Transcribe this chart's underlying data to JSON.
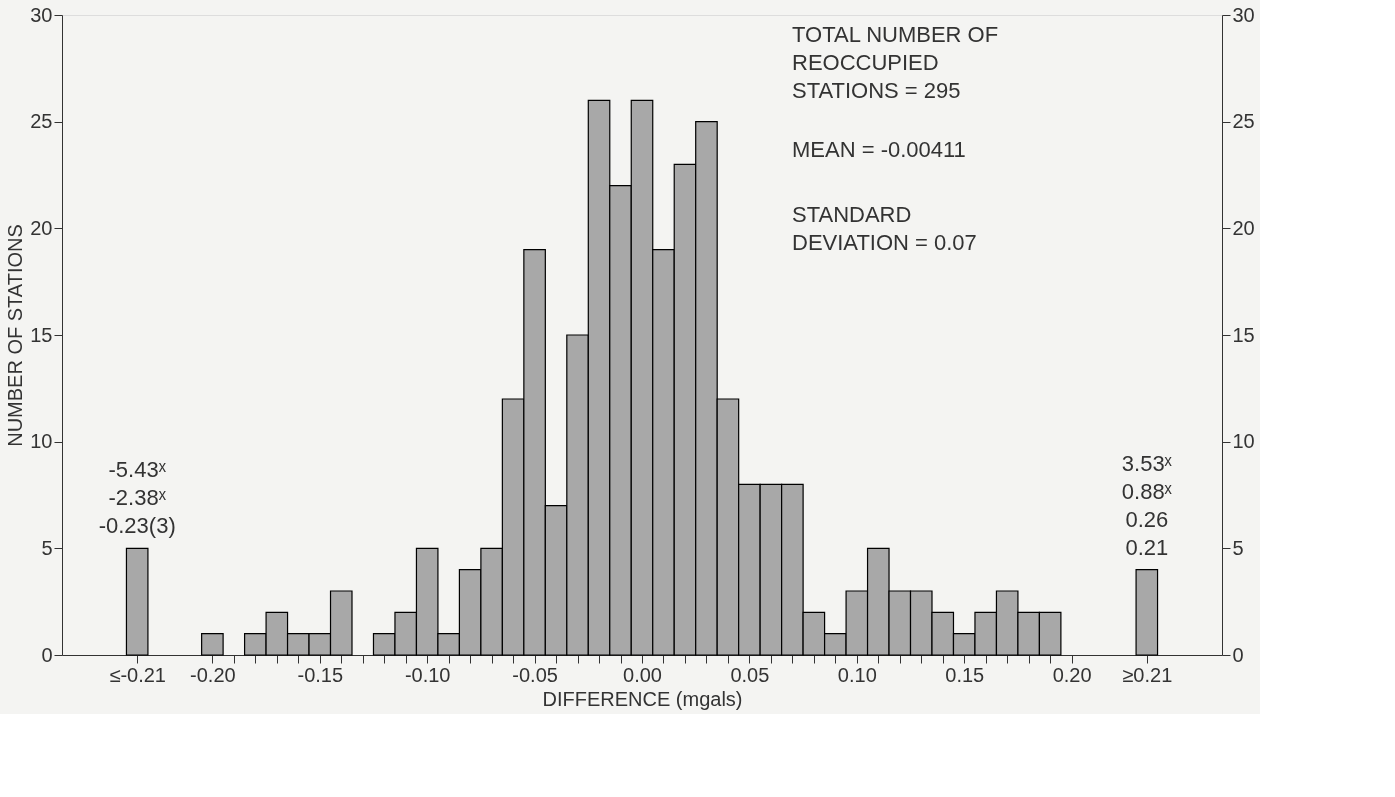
{
  "chart_data": {
    "type": "histogram",
    "xlabel": "DIFFERENCE (mgals)",
    "ylabel": "NUMBER OF STATIONS",
    "bins": [
      -0.24,
      -0.23,
      -0.205,
      -0.195,
      -0.185,
      -0.175,
      -0.165,
      -0.155,
      -0.145,
      -0.135,
      -0.125,
      -0.115,
      -0.105,
      -0.095,
      -0.085,
      -0.075,
      -0.065,
      -0.055,
      -0.045,
      -0.035,
      -0.025,
      -0.015,
      -0.005,
      0.005,
      0.015,
      0.025,
      0.035,
      0.045,
      0.055,
      0.065,
      0.075,
      0.085,
      0.095,
      0.105,
      0.115,
      0.125,
      0.135,
      0.145,
      0.155,
      0.165,
      0.175,
      0.185,
      0.195,
      0.23,
      0.24
    ],
    "values": [
      5,
      null,
      1,
      0,
      1,
      2,
      1,
      1,
      3,
      0,
      1,
      2,
      5,
      1,
      4,
      5,
      12,
      19,
      7,
      15,
      26,
      22,
      26,
      19,
      23,
      25,
      12,
      8,
      8,
      8,
      2,
      1,
      3,
      5,
      3,
      3,
      2,
      1,
      2,
      3,
      2,
      2,
      null,
      4
    ],
    "color": "#a8a8a8",
    "xlim": [
      -0.27,
      0.27
    ],
    "xticks": [
      {
        "value": -0.235,
        "label": "≤-0.21"
      },
      {
        "value": -0.2,
        "label": "-0.20"
      },
      {
        "value": -0.19,
        "label": null
      },
      {
        "value": -0.18,
        "label": null
      },
      {
        "value": -0.17,
        "label": null
      },
      {
        "value": -0.16,
        "label": null
      },
      {
        "value": -0.15,
        "label": "-0.15"
      },
      {
        "value": -0.14,
        "label": null
      },
      {
        "value": -0.13,
        "label": null
      },
      {
        "value": -0.12,
        "label": null
      },
      {
        "value": -0.11,
        "label": null
      },
      {
        "value": -0.1,
        "label": "-0.10"
      },
      {
        "value": -0.09,
        "label": null
      },
      {
        "value": -0.08,
        "label": null
      },
      {
        "value": -0.07,
        "label": null
      },
      {
        "value": -0.06,
        "label": null
      },
      {
        "value": -0.05,
        "label": "-0.05"
      },
      {
        "value": -0.04,
        "label": null
      },
      {
        "value": -0.03,
        "label": null
      },
      {
        "value": -0.02,
        "label": null
      },
      {
        "value": -0.01,
        "label": null
      },
      {
        "value": 0,
        "label": "0.00"
      },
      {
        "value": 0.01,
        "label": null
      },
      {
        "value": 0.02,
        "label": null
      },
      {
        "value": 0.03,
        "label": null
      },
      {
        "value": 0.04,
        "label": null
      },
      {
        "value": 0.05,
        "label": "0.05"
      },
      {
        "value": 0.06,
        "label": null
      },
      {
        "value": 0.07,
        "label": null
      },
      {
        "value": 0.08,
        "label": null
      },
      {
        "value": 0.09,
        "label": null
      },
      {
        "value": 0.1,
        "label": "0.10"
      },
      {
        "value": 0.11,
        "label": null
      },
      {
        "value": 0.12,
        "label": null
      },
      {
        "value": 0.13,
        "label": null
      },
      {
        "value": 0.14,
        "label": null
      },
      {
        "value": 0.15,
        "label": "0.15"
      },
      {
        "value": 0.16,
        "label": null
      },
      {
        "value": 0.17,
        "label": null
      },
      {
        "value": 0.18,
        "label": null
      },
      {
        "value": 0.19,
        "label": null
      },
      {
        "value": 0.2,
        "label": "0.20"
      },
      {
        "value": 0.235,
        "label": "≥0.21"
      }
    ],
    "ylim": [
      0,
      30
    ],
    "yticks": [
      0,
      5,
      10,
      15,
      20,
      25,
      30
    ],
    "y2lim": [
      0,
      30
    ],
    "y2ticks": [
      0,
      5,
      10,
      15,
      20,
      25,
      30
    ],
    "annotations": [
      {
        "text": "-5.43ˣ\n-2.38ˣ\n-0.23(3)",
        "x": -0.235,
        "y": 5
      },
      {
        "text": "3.53ˣ\n0.88ˣ\n0.26\n0.21",
        "x": 0.235,
        "y": 4
      },
      "TOTAL NUMBER OF\nREOCCUPIED\nSTATIONS = 295",
      "MEAN = -0.00411",
      "STANDARD\nDEVIATION = 0.07"
    ],
    "grid": false
  }
}
